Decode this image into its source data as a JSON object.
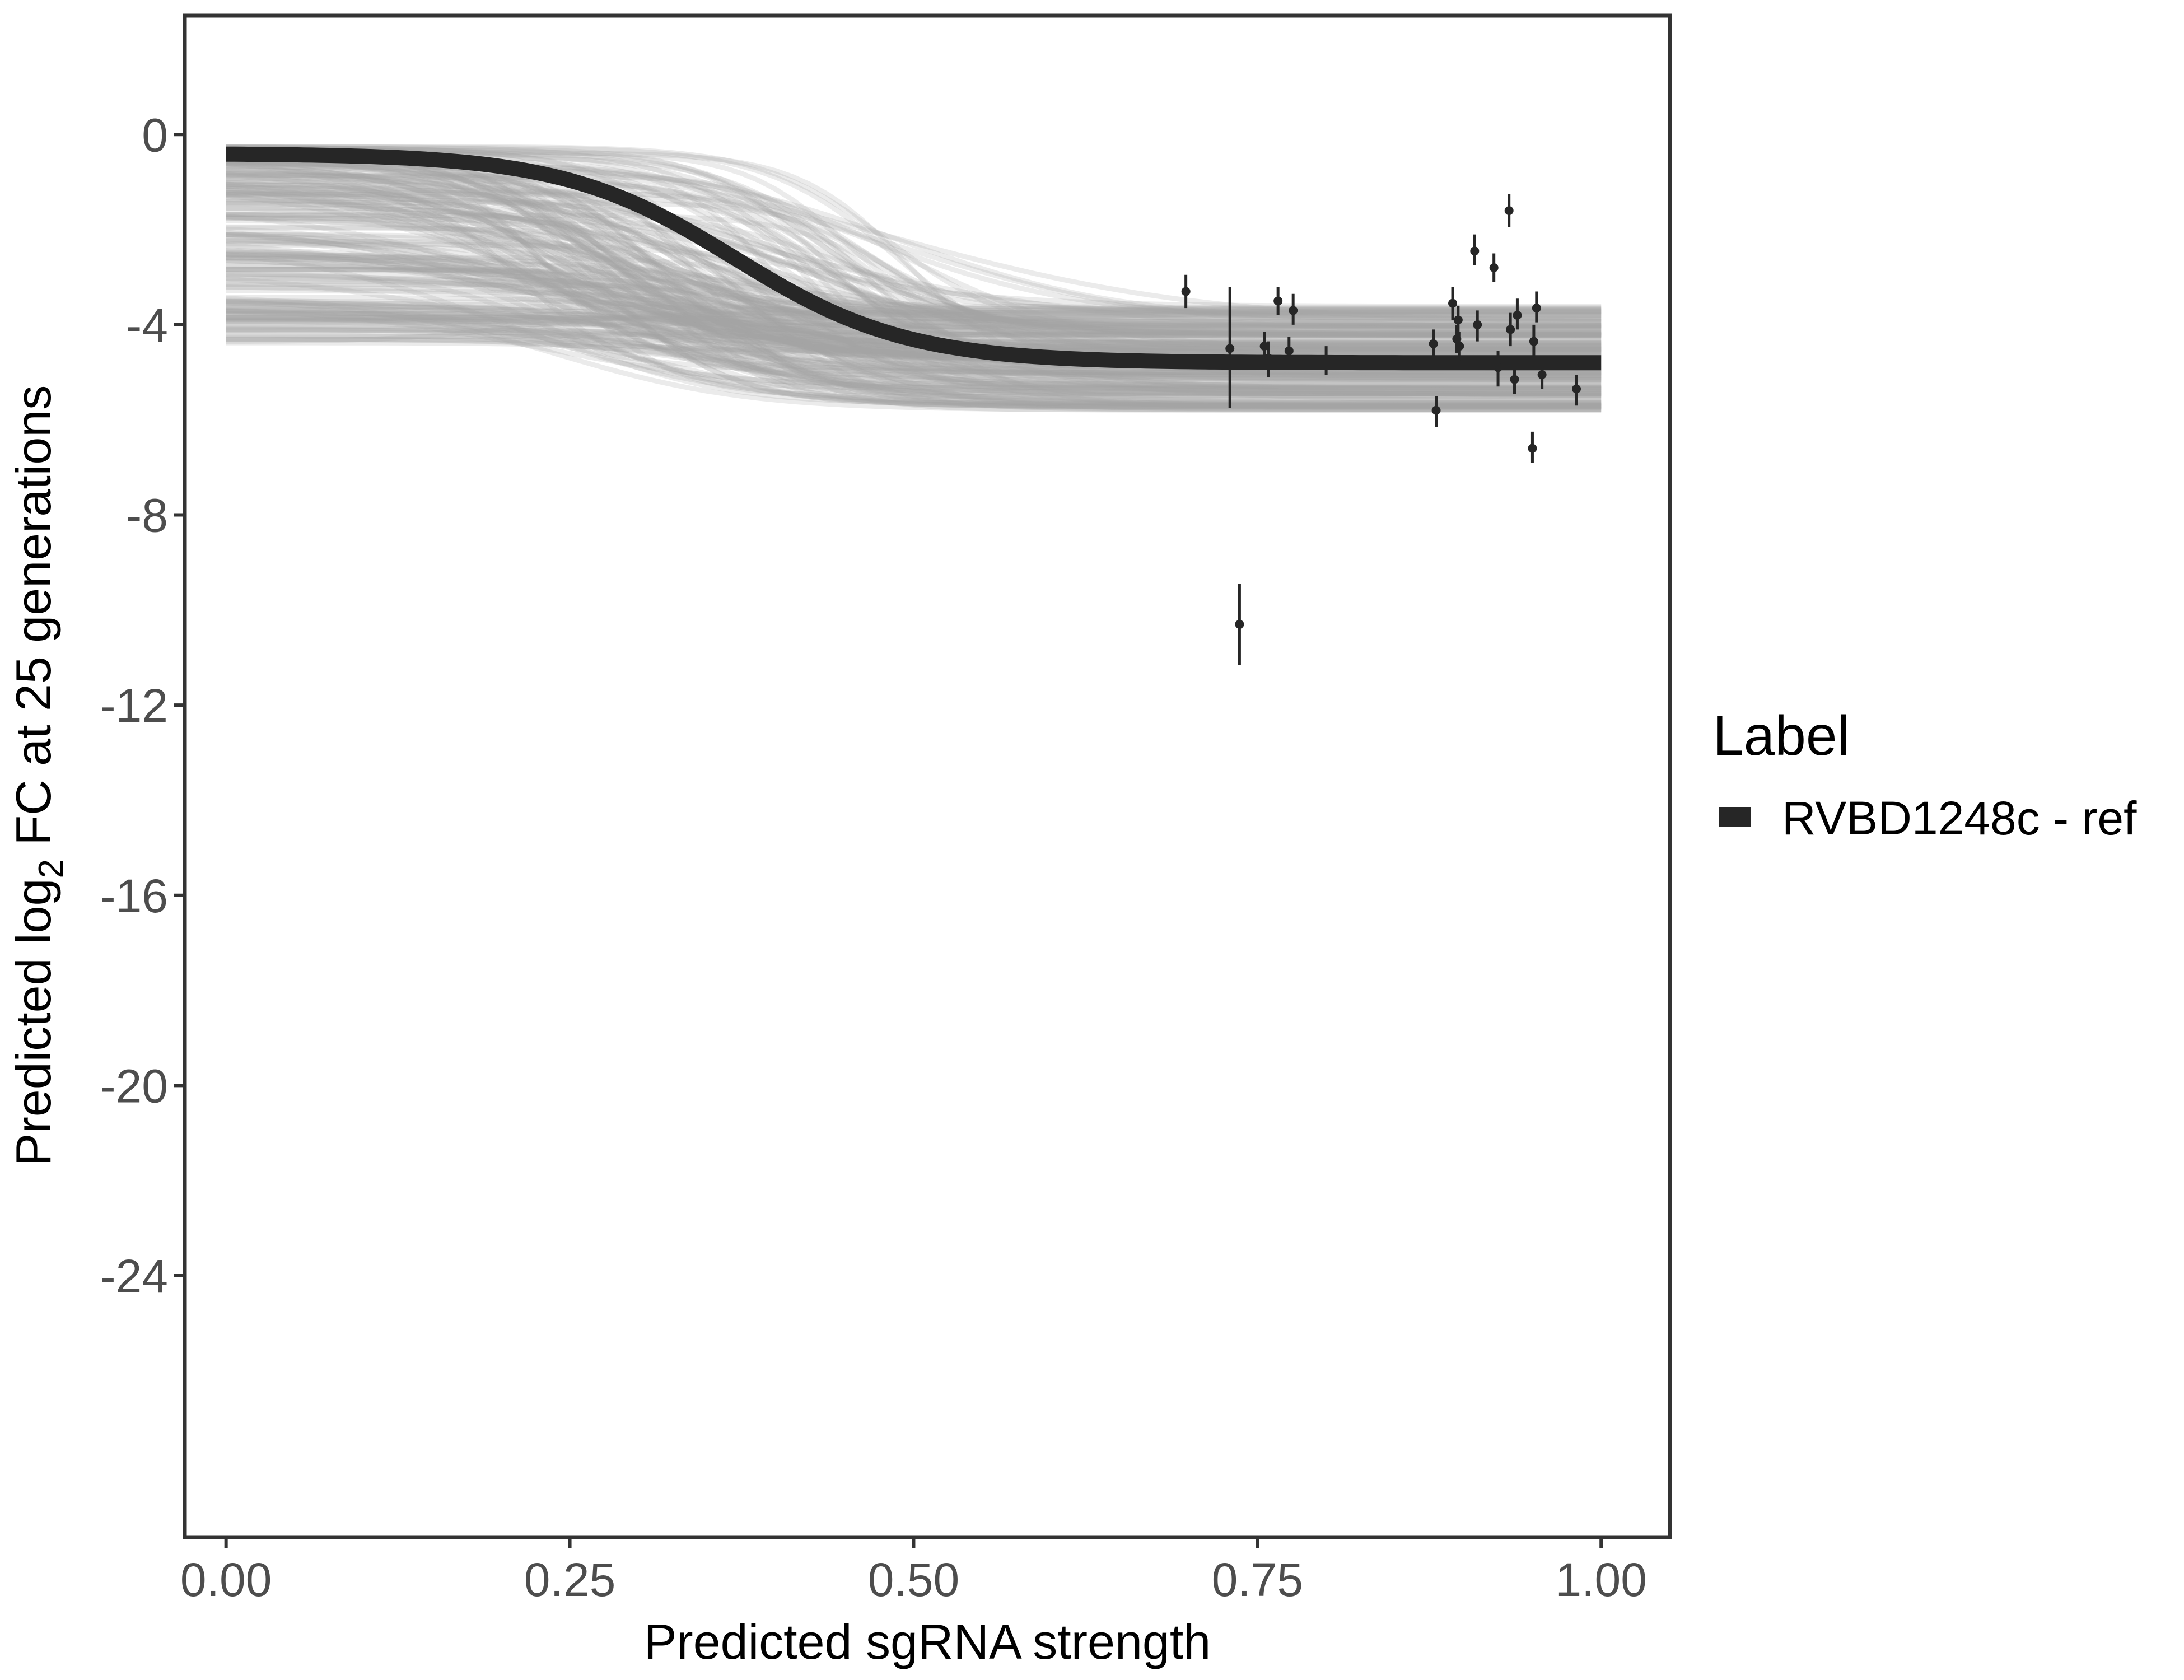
{
  "chart_data": {
    "type": "line",
    "xlabel": "Predicted sgRNA strength",
    "ylabel": {
      "prefix": "Predicted  log",
      "subscript": "2",
      "suffix": " FC at 25 generations"
    },
    "xlim": [
      -0.03,
      1.05
    ],
    "ylim": [
      -29.5,
      2.5
    ],
    "x_ticks": [
      0.0,
      0.25,
      0.5,
      0.75,
      1.0
    ],
    "x_tick_labels": [
      "0.00",
      "0.25",
      "0.50",
      "0.75",
      "1.00"
    ],
    "y_ticks": [
      0,
      -4,
      -8,
      -12,
      -16,
      -20,
      -24
    ],
    "y_tick_labels": [
      "0",
      "-4",
      "-8",
      "-12",
      "-16",
      "-20",
      "-24"
    ],
    "grid": false,
    "legend": {
      "title": "Label",
      "position": "right",
      "entries": [
        {
          "label": "RVBD1248c - ref",
          "color": "#262626"
        }
      ]
    },
    "fitted_curve": {
      "name": "RVBD1248c - ref",
      "color": "#262626",
      "model": "sigmoid",
      "x_range": [
        0.0,
        1.0
      ],
      "upper": -0.4,
      "lower": -4.8,
      "midpoint": 0.37,
      "slope": 16
    },
    "posterior_draws": {
      "color": "#a6a6a6",
      "count": 220,
      "x_range": [
        0.0,
        1.0
      ],
      "upper_range": [
        -4.4,
        -0.25
      ],
      "lower_range": [
        -5.8,
        -3.6
      ],
      "midpoint_range": [
        0.2,
        0.5
      ],
      "slope_range": [
        8,
        28
      ]
    },
    "points": [
      {
        "x": 0.698,
        "y": -3.3,
        "ymin": -3.65,
        "ymax": -2.95
      },
      {
        "x": 0.73,
        "y": -4.5,
        "ymin": -5.75,
        "ymax": -3.2
      },
      {
        "x": 0.737,
        "y": -10.3,
        "ymin": -11.15,
        "ymax": -9.45
      },
      {
        "x": 0.755,
        "y": -4.45,
        "ymin": -4.75,
        "ymax": -4.15
      },
      {
        "x": 0.758,
        "y": -4.7,
        "ymin": -5.1,
        "ymax": -4.35
      },
      {
        "x": 0.765,
        "y": -3.5,
        "ymin": -3.8,
        "ymax": -3.2
      },
      {
        "x": 0.773,
        "y": -4.55,
        "ymin": -4.85,
        "ymax": -4.25
      },
      {
        "x": 0.776,
        "y": -3.7,
        "ymin": -4.0,
        "ymax": -3.35
      },
      {
        "x": 0.8,
        "y": -4.75,
        "ymin": -5.05,
        "ymax": -4.45
      },
      {
        "x": 0.878,
        "y": -4.4,
        "ymin": -4.7,
        "ymax": -4.1
      },
      {
        "x": 0.88,
        "y": -5.8,
        "ymin": -6.15,
        "ymax": -5.5
      },
      {
        "x": 0.892,
        "y": -3.55,
        "ymin": -3.9,
        "ymax": -3.2
      },
      {
        "x": 0.895,
        "y": -4.3,
        "ymin": -4.6,
        "ymax": -4.0
      },
      {
        "x": 0.896,
        "y": -3.9,
        "ymin": -4.25,
        "ymax": -3.6
      },
      {
        "x": 0.897,
        "y": -4.45,
        "ymin": -4.75,
        "ymax": -4.15
      },
      {
        "x": 0.908,
        "y": -2.45,
        "ymin": -2.75,
        "ymax": -2.1
      },
      {
        "x": 0.91,
        "y": -4.0,
        "ymin": -4.35,
        "ymax": -3.7
      },
      {
        "x": 0.922,
        "y": -2.8,
        "ymin": -3.1,
        "ymax": -2.5
      },
      {
        "x": 0.925,
        "y": -4.9,
        "ymin": -5.3,
        "ymax": -4.55
      },
      {
        "x": 0.933,
        "y": -1.6,
        "ymin": -1.95,
        "ymax": -1.25
      },
      {
        "x": 0.934,
        "y": -4.1,
        "ymin": -4.45,
        "ymax": -3.75
      },
      {
        "x": 0.937,
        "y": -5.15,
        "ymin": -5.45,
        "ymax": -4.8
      },
      {
        "x": 0.939,
        "y": -3.8,
        "ymin": -4.1,
        "ymax": -3.45
      },
      {
        "x": 0.95,
        "y": -6.6,
        "ymin": -6.9,
        "ymax": -6.25
      },
      {
        "x": 0.951,
        "y": -4.35,
        "ymin": -4.7,
        "ymax": -4.0
      },
      {
        "x": 0.953,
        "y": -3.65,
        "ymin": -3.95,
        "ymax": -3.3
      },
      {
        "x": 0.957,
        "y": -5.05,
        "ymin": -5.35,
        "ymax": -4.7
      },
      {
        "x": 0.982,
        "y": -5.35,
        "ymin": -5.7,
        "ymax": -5.05
      }
    ]
  }
}
